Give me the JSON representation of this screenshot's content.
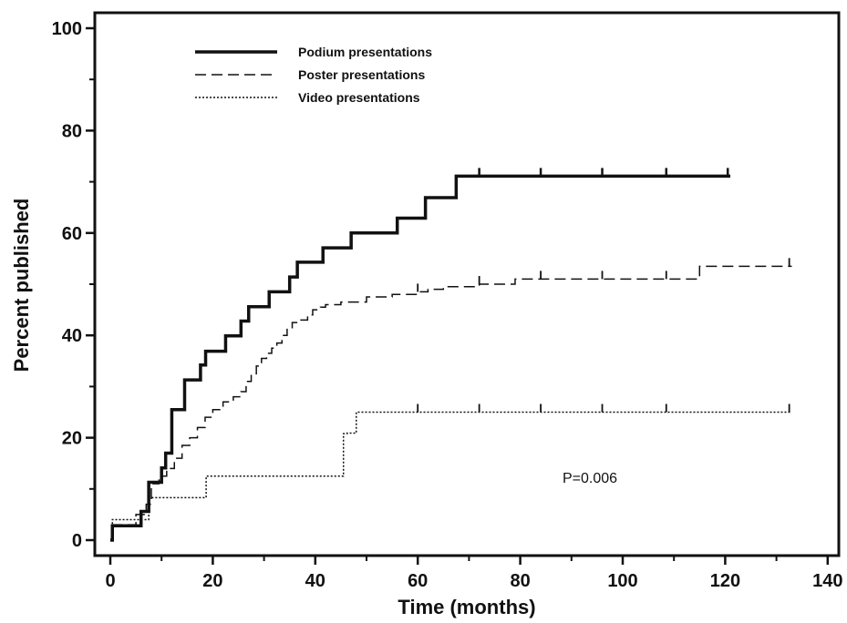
{
  "chart_data": {
    "type": "line",
    "title": "",
    "xlabel": "Time (months)",
    "ylabel": "Percent published",
    "xlim": [
      0,
      140
    ],
    "ylim": [
      0,
      100
    ],
    "xticks": [
      0,
      20,
      40,
      60,
      80,
      100,
      120,
      140
    ],
    "yticks": [
      0,
      20,
      40,
      60,
      80,
      100
    ],
    "grid": false,
    "legend_position": "top-left",
    "annotation": "P=0.006",
    "series": [
      {
        "name": "Podium presentations",
        "style": "solid-thick",
        "color": "#111111",
        "x": [
          0,
          0.4,
          6,
          7.5,
          10,
          10.8,
          12,
          14.5,
          17.6,
          18.6,
          22.5,
          25.5,
          27,
          31,
          35,
          36.5,
          41.5,
          47,
          56,
          61.5,
          67.5,
          121
        ],
        "y": [
          0,
          2.8,
          5.6,
          11.3,
          14.1,
          17,
          25.5,
          31.3,
          34.2,
          36.9,
          39.9,
          42.8,
          45.6,
          48.5,
          51.4,
          54.3,
          57.1,
          60,
          62.9,
          66.9,
          71.1,
          71.1
        ],
        "censored_x": [
          72,
          84,
          96,
          108.5,
          120.5
        ]
      },
      {
        "name": "Poster presentations",
        "style": "dashed",
        "color": "#111111",
        "x": [
          0,
          0.4,
          5,
          7,
          8,
          9.5,
          11,
          12.5,
          14,
          15.5,
          17,
          18.5,
          20,
          22,
          24,
          25.5,
          26.5,
          27.5,
          28.5,
          29.5,
          30.5,
          31.5,
          32.5,
          33.5,
          34.5,
          35.5,
          37,
          38.5,
          39.5,
          41,
          42,
          45,
          50,
          55,
          60,
          62,
          65,
          72,
          79,
          115,
          133
        ],
        "y": [
          0,
          3,
          5,
          7,
          11,
          12.5,
          14,
          16,
          18.5,
          20,
          22,
          24,
          25.5,
          27,
          28,
          29,
          31,
          32.5,
          34,
          35.5,
          36.5,
          37.5,
          38.5,
          40,
          41.5,
          42.5,
          43,
          44,
          45,
          45.5,
          46,
          46.5,
          47.5,
          48,
          48.5,
          49,
          49.5,
          50,
          51,
          53.5,
          53.5
        ],
        "censored_x": [
          60,
          72,
          84,
          96,
          108.5,
          132.5
        ]
      },
      {
        "name": "Video presentations",
        "style": "dotted",
        "color": "#111111",
        "x": [
          0,
          0.4,
          7.5,
          18.7,
          45.5,
          46.2,
          48,
          133
        ],
        "y": [
          0,
          4,
          8.3,
          12.5,
          20.8,
          20.9,
          25,
          25
        ],
        "censored_x": [
          60,
          72,
          84,
          96,
          108.5,
          132.5
        ]
      }
    ]
  }
}
